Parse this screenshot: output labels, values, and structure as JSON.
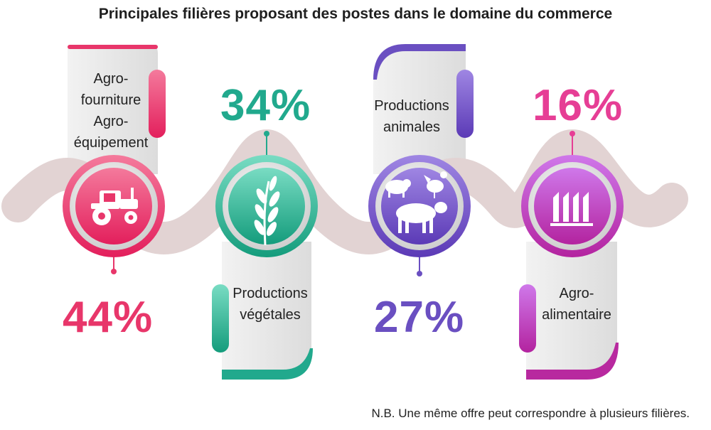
{
  "chart_data": {
    "type": "infographic",
    "title": "Principales filières proposant des postes dans le domaine du commerce",
    "unit": "%",
    "items": [
      {
        "category": "Agro-fourniture Agro-équipement",
        "label_lines": [
          "Agro-",
          "fourniture",
          "Agro-",
          "équipement"
        ],
        "value": 44,
        "value_label": "44%",
        "color": "#e8366a",
        "icon": "tractor-icon"
      },
      {
        "category": "Productions végétales",
        "label_lines": [
          "Productions",
          "végétales"
        ],
        "value": 34,
        "value_label": "34%",
        "color": "#21a98d",
        "icon": "wheat-icon"
      },
      {
        "category": "Productions animales",
        "label_lines": [
          "Productions",
          "animales"
        ],
        "value": 27,
        "value_label": "27%",
        "color": "#6a4fc1",
        "icon": "farm-animals-icon"
      },
      {
        "category": "Agro-alimentaire",
        "label_lines": [
          "Agro-",
          "alimentaire"
        ],
        "value": 16,
        "value_label": "16%",
        "color": "#e63e95",
        "icon": "factory-icon"
      }
    ],
    "note": "N.B. Une même offre peut correspondre à plusieurs filières."
  }
}
